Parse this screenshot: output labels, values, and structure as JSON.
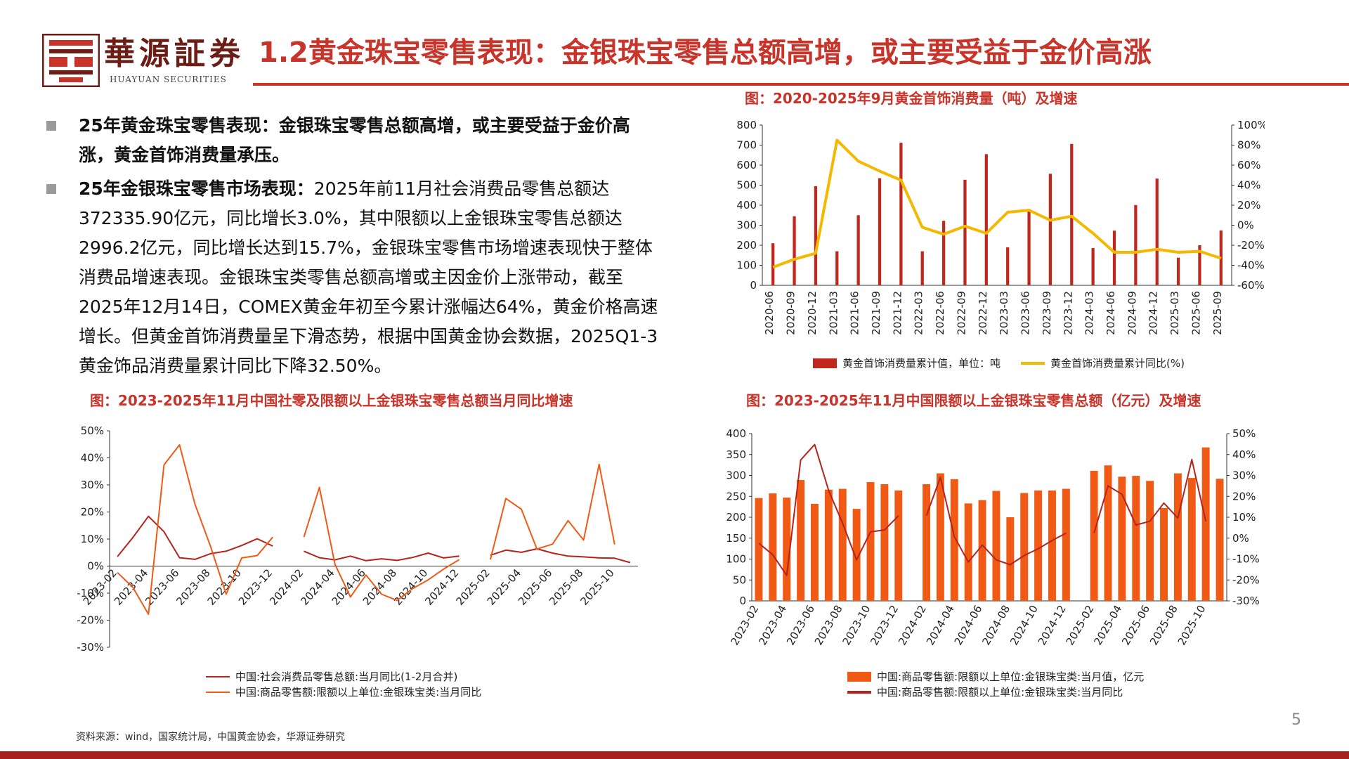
{
  "header": {
    "logo_cn": "華源証券",
    "logo_en": "HUAYUAN SECURITIES",
    "title": "1.2黄金珠宝零售表现：金银珠宝零售总额高增，或主要受益于金价高涨"
  },
  "bullets": [
    {
      "bold": "25年黄金珠宝零售表现：金银珠宝零售总额高增，或主要受益于金价高涨，黄金首饰消费量承压。",
      "text": ""
    },
    {
      "bold": "25年金银珠宝零售市场表现：",
      "text": "2025年前11月社会消费品零售总额达372335.90亿元，同比增长3.0%，其中限额以上金银珠宝零售总额达2996.2亿元，同比增长达到15.7%，金银珠宝零售市场增速表现快于整体消费品增速表现。金银珠宝类零售总额高增或主因金价上涨带动，截至2025年12月14日，COMEX黄金年初至今累计涨幅达64%，黄金价格高速增长。但黄金首饰消费量呈下滑态势，根据中国黄金协会数据，2025Q1-3黄金饰品消费量累计同比下降32.50%。"
    }
  ],
  "footer": {
    "source": "资料来源：wind，国家统计局，中国黄金协会，华源证券研究",
    "page": "5"
  },
  "colors": {
    "accent": "#c8332a",
    "dark_red": "#b5231c",
    "gold": "#f5b800",
    "orange": "#f05a14",
    "bottom": "#a8231d"
  },
  "chart_data": [
    {
      "id": "c1",
      "type": "bar",
      "title": "图：2020-2025年9月黄金首饰消费量（吨）及增速",
      "categories": [
        "2020-06",
        "2020-09",
        "2020-12",
        "2021-03",
        "2021-06",
        "2021-09",
        "2021-12",
        "2022-03",
        "2022-06",
        "2022-09",
        "2022-12",
        "2023-03",
        "2023-06",
        "2023-09",
        "2023-12",
        "2024-03",
        "2024-06",
        "2024-09",
        "2024-12",
        "2025-03",
        "2025-06",
        "2025-09"
      ],
      "ylim": [
        0,
        800
      ],
      "y2lim": [
        -60,
        100
      ],
      "yticks": [
        "0",
        "100",
        "200",
        "300",
        "400",
        "500",
        "600",
        "700",
        "800"
      ],
      "y2ticks": [
        "-60%",
        "-40%",
        "-20%",
        "0%",
        "20%",
        "40%",
        "60%",
        "80%",
        "100%"
      ],
      "series": [
        {
          "name": "黄金首饰消费量累计值，单位：吨",
          "kind": "bar",
          "color": "#c0281e",
          "values": [
            210,
            345,
            495,
            170,
            350,
            535,
            712,
            170,
            322,
            527,
            655,
            190,
            370,
            557,
            706,
            186,
            273,
            401,
            533,
            138,
            200,
            274
          ]
        },
        {
          "name": "黄金首饰消费量累计同比(%)",
          "kind": "line",
          "axis": "right",
          "color": "#f5b800",
          "values": [
            -42,
            -34,
            -28,
            85,
            64,
            54,
            45,
            -2,
            -9,
            -1,
            -8,
            13,
            15,
            5,
            9,
            -8,
            -27,
            -27,
            -24,
            -27,
            -26,
            -33
          ]
        }
      ],
      "legend_position": "bottom"
    },
    {
      "id": "c2",
      "type": "line",
      "title": "图：2023-2025年11月中国社零及限额以上金银珠宝零售总额当月同比增速",
      "categories": [
        "2023-02",
        "2023-03",
        "2023-04",
        "2023-05",
        "2023-06",
        "2023-07",
        "2023-08",
        "2023-09",
        "2023-10",
        "2023-11",
        "2023-12",
        "2024-01",
        "2024-02",
        "2024-03",
        "2024-04",
        "2024-05",
        "2024-06",
        "2024-07",
        "2024-08",
        "2024-09",
        "2024-10",
        "2024-11",
        "2024-12",
        "2025-01",
        "2025-02",
        "2025-03",
        "2025-04",
        "2025-05",
        "2025-06",
        "2025-07",
        "2025-08",
        "2025-09",
        "2025-10",
        "2025-11"
      ],
      "xticks": [
        "2023-02",
        "2023-04",
        "2023-06",
        "2023-08",
        "2023-10",
        "2023-12",
        "2024-02",
        "2024-04",
        "2024-06",
        "2024-08",
        "2024-10",
        "2024-12",
        "2025-02",
        "2025-04",
        "2025-06",
        "2025-08",
        "2025-10"
      ],
      "ylim": [
        -30,
        50
      ],
      "yticks": [
        "-30%",
        "-20%",
        "-10%",
        "0%",
        "10%",
        "20%",
        "30%",
        "40%",
        "50%"
      ],
      "series": [
        {
          "name": "中国:社会消费品零售总额:当月同比(1-2月合并)",
          "color": "#b5231c",
          "values": [
            3.5,
            10.6,
            18.4,
            12.7,
            3.1,
            2.5,
            4.6,
            5.5,
            7.6,
            10.1,
            7.4,
            null,
            5.5,
            3.1,
            2.3,
            3.7,
            2.0,
            2.7,
            2.1,
            3.2,
            4.8,
            3.0,
            3.7,
            null,
            4.0,
            5.9,
            5.1,
            6.4,
            4.8,
            3.7,
            3.4,
            3.0,
            2.9,
            1.3
          ]
        },
        {
          "name": "中国:商品零售额:限额以上单位:金银珠宝类:当月同比",
          "color": "#f05a14",
          "values": [
            -2.4,
            -7.9,
            -17.8,
            37.4,
            44.8,
            22.8,
            7.2,
            -10.4,
            3.0,
            3.9,
            10.7,
            null,
            10.7,
            29.1,
            0.7,
            -11.4,
            -3.3,
            -10.4,
            -12.7,
            -8.3,
            -5.1,
            -1.1,
            2.4,
            null,
            2.4,
            25.0,
            21.0,
            6.3,
            8.1,
            16.8,
            9.6,
            37.6,
            8.0,
            null
          ]
        }
      ],
      "legend_position": "bottom"
    },
    {
      "id": "c3",
      "type": "bar",
      "title": "图：2023-2025年11月中国限额以上金银珠宝零售总额（亿元）及增速",
      "categories": [
        "2023-02",
        "2023-03",
        "2023-04",
        "2023-05",
        "2023-06",
        "2023-07",
        "2023-08",
        "2023-09",
        "2023-10",
        "2023-11",
        "2023-12",
        "2024-01",
        "2024-02",
        "2024-03",
        "2024-04",
        "2024-05",
        "2024-06",
        "2024-07",
        "2024-08",
        "2024-09",
        "2024-10",
        "2024-11",
        "2024-12",
        "2025-01",
        "2025-02",
        "2025-03",
        "2025-04",
        "2025-05",
        "2025-06",
        "2025-07",
        "2025-08",
        "2025-09",
        "2025-10",
        "2025-11"
      ],
      "xticks": [
        "2023-02",
        "2023-04",
        "2023-06",
        "2023-08",
        "2023-10",
        "2023-12",
        "2024-02",
        "2024-04",
        "2024-06",
        "2024-08",
        "2024-10",
        "2024-12",
        "2025-02",
        "2025-04",
        "2025-06",
        "2025-08",
        "2025-10"
      ],
      "ylim": [
        0,
        400
      ],
      "y2lim": [
        -30,
        50
      ],
      "yticks": [
        "0",
        "50",
        "100",
        "150",
        "200",
        "250",
        "300",
        "350",
        "400"
      ],
      "y2ticks": [
        "-30%",
        "-20%",
        "-10%",
        "0%",
        "10%",
        "20%",
        "30%",
        "40%",
        "50%"
      ],
      "series": [
        {
          "name": "中国:商品零售额:限额以上单位:金银珠宝类:当月值，亿元",
          "kind": "bar",
          "color": "#f05a14",
          "values": [
            246,
            257,
            247,
            289,
            232,
            266,
            268,
            220,
            284,
            279,
            264,
            null,
            279,
            305,
            291,
            233,
            241,
            263,
            200,
            258,
            264,
            264,
            268,
            null,
            311,
            324,
            297,
            299,
            287,
            222,
            305,
            294,
            367,
            292
          ]
        },
        {
          "name": "中国:商品零售额:限额以上单位:金银珠宝类:当月同比",
          "kind": "line",
          "axis": "right",
          "color": "#b5231c",
          "values": [
            -2.4,
            -7.9,
            -17.8,
            37.4,
            44.8,
            22.8,
            7.2,
            -10.4,
            3.0,
            3.9,
            10.7,
            null,
            10.7,
            29.1,
            0.7,
            -11.4,
            -3.3,
            -10.4,
            -12.7,
            -8.3,
            -5.1,
            -1.1,
            2.4,
            null,
            2.4,
            25.0,
            21.0,
            6.3,
            8.1,
            16.8,
            9.6,
            37.6,
            8.0,
            null
          ]
        }
      ],
      "legend_position": "bottom"
    }
  ]
}
